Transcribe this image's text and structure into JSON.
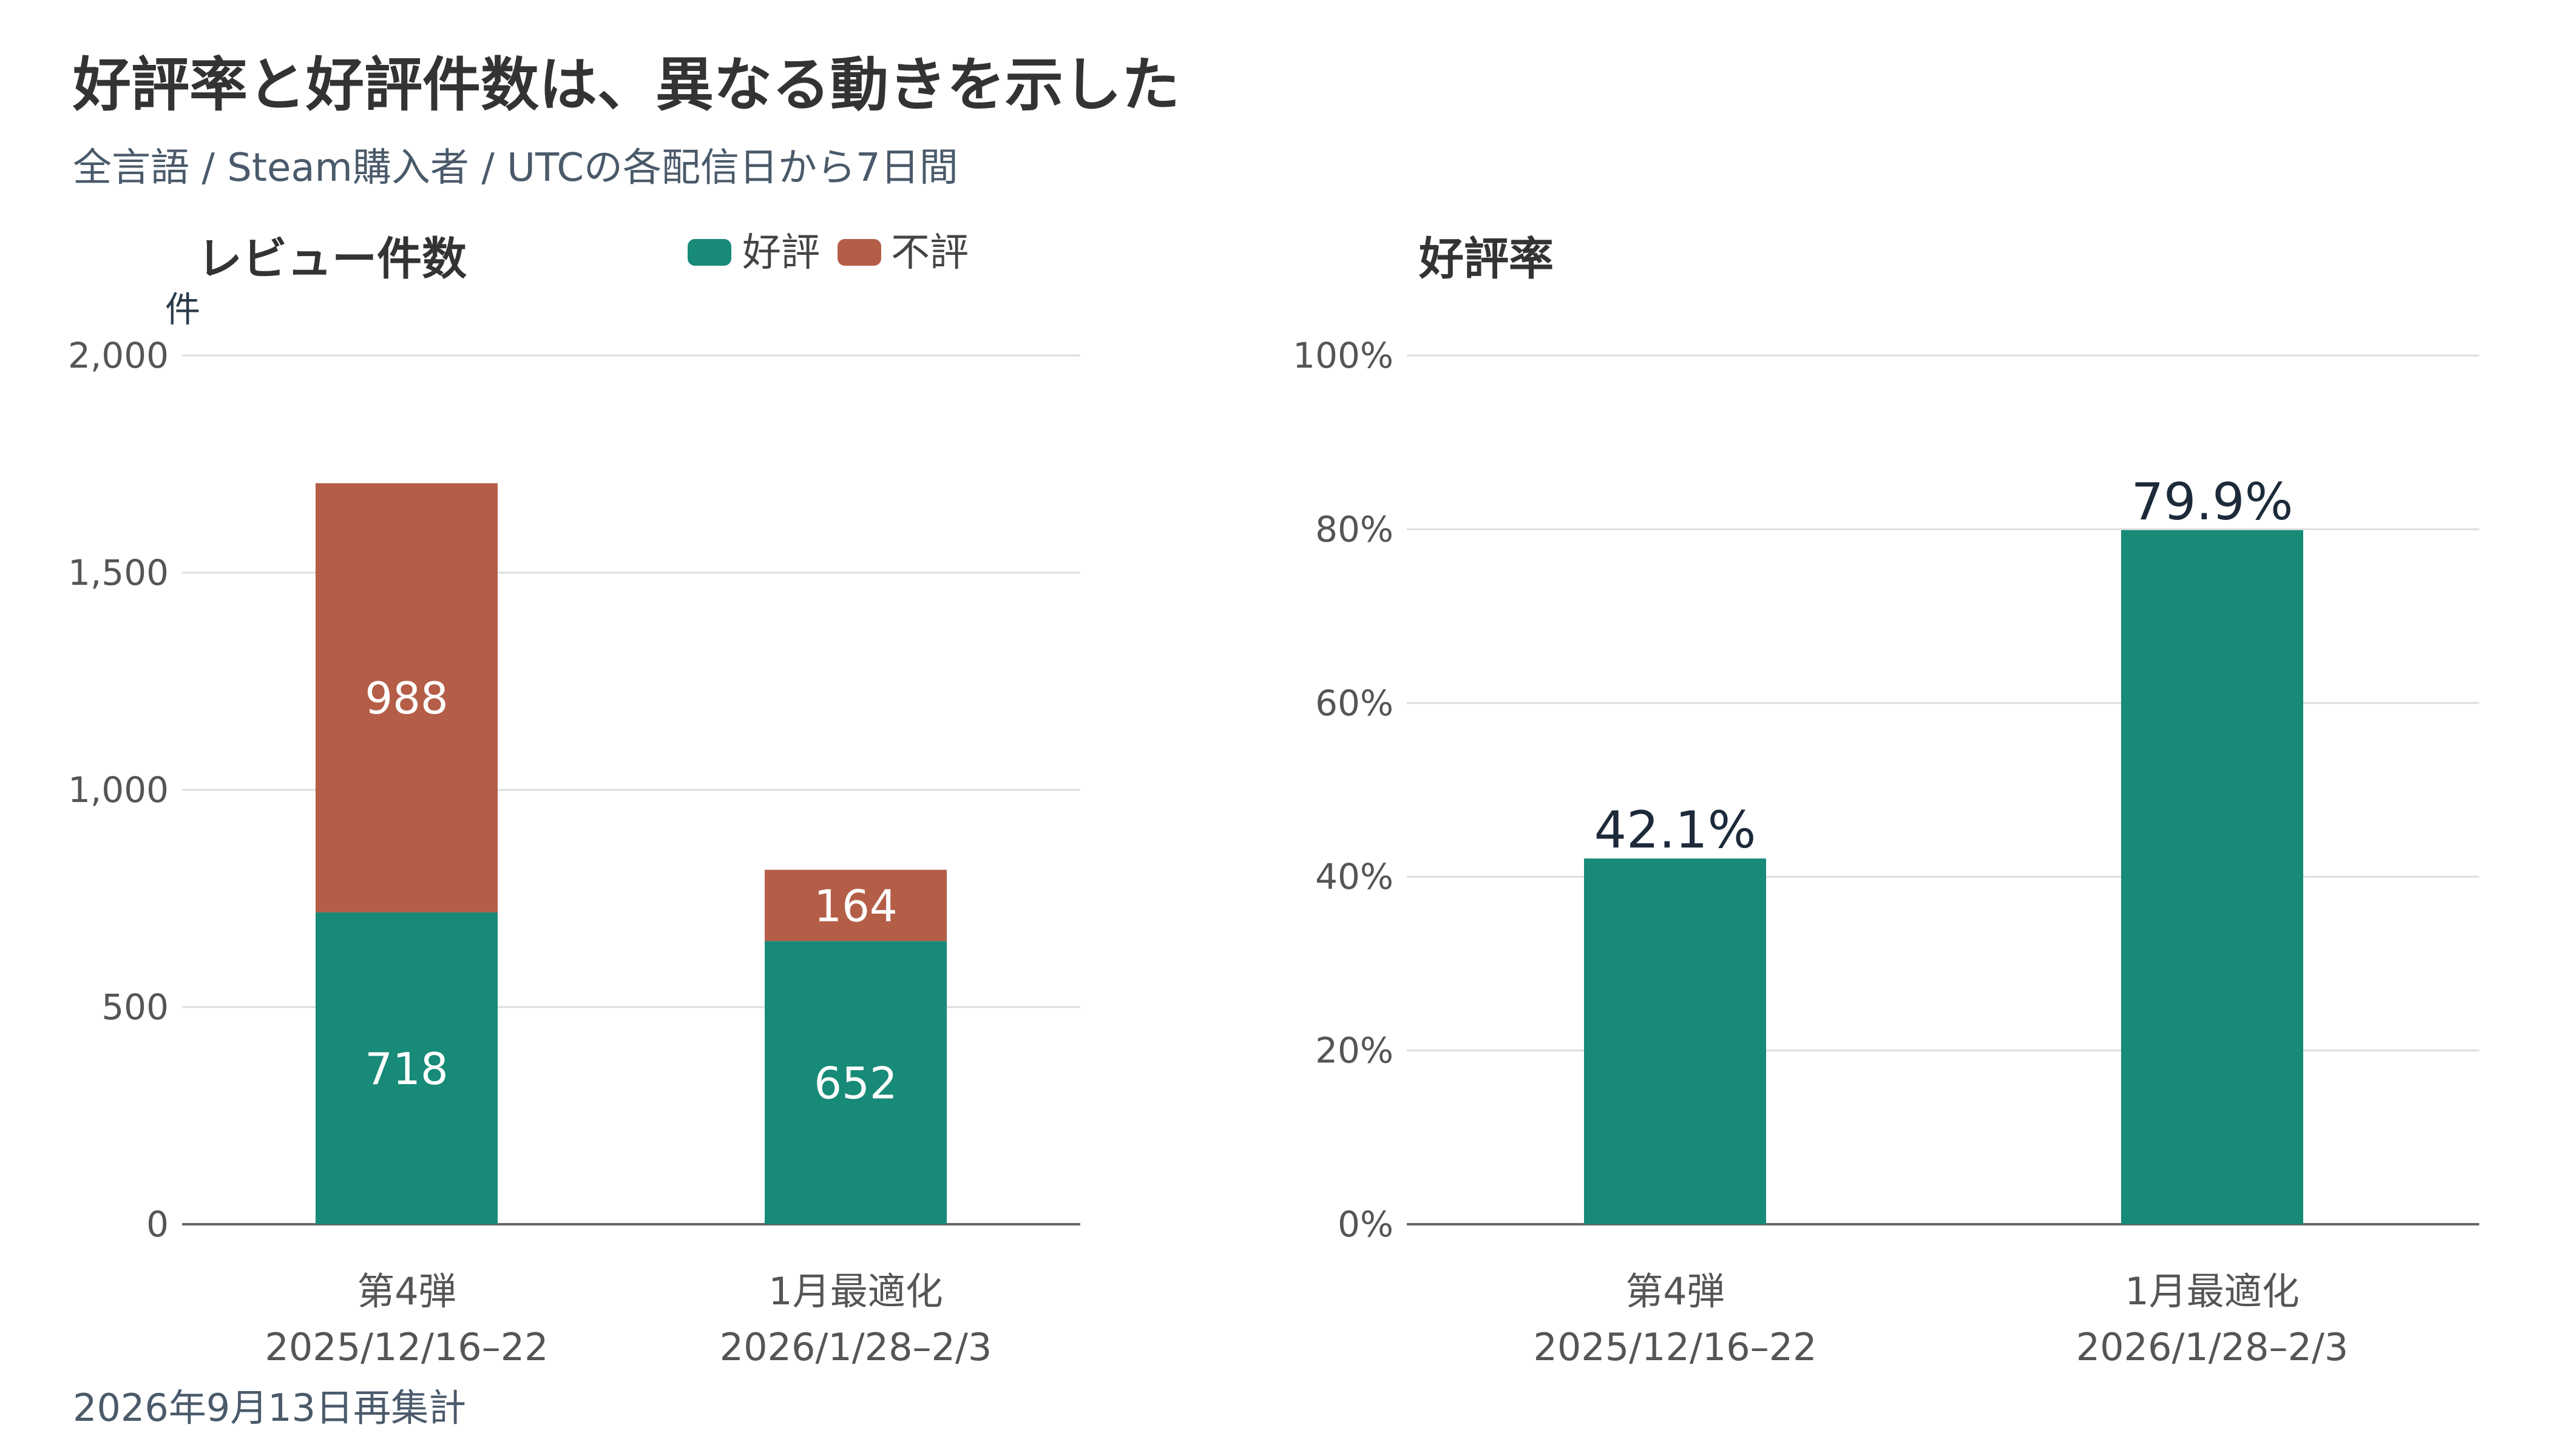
{
  "header": {
    "title": "好評率と好評件数は、異なる動きを示した",
    "subtitle": "全言語 / Steam購入者 / UTCの各配信日から7日間"
  },
  "footnote": "2026年9月13日再集計",
  "colors": {
    "positive": "#178a78",
    "negative": "#b45e48",
    "grid": "#dddddd",
    "axis": "#666666"
  },
  "chart_data": [
    {
      "type": "bar",
      "stacked": true,
      "title": "レビュー件数",
      "ylabel": "件",
      "ylim": [
        0,
        2000
      ],
      "yticks": [
        "0",
        "500",
        "1,000",
        "1,500",
        "2,000"
      ],
      "ytick_values": [
        0,
        500,
        1000,
        1500,
        2000
      ],
      "legend_position": "top-right",
      "categories": [
        {
          "name": "第4弾",
          "period": "2025/12/16–22"
        },
        {
          "name": "1月最適化",
          "period": "2026/1/28–2/3"
        }
      ],
      "series": [
        {
          "name": "好評",
          "values": [
            718,
            652
          ]
        },
        {
          "name": "不評",
          "values": [
            988,
            164
          ]
        }
      ]
    },
    {
      "type": "bar",
      "title": "好評率",
      "ylim": [
        0,
        100
      ],
      "yticks": [
        "0%",
        "20%",
        "40%",
        "60%",
        "80%",
        "100%"
      ],
      "ytick_values": [
        0,
        20,
        40,
        60,
        80,
        100
      ],
      "categories": [
        {
          "name": "第4弾",
          "period": "2025/12/16–22"
        },
        {
          "name": "1月最適化",
          "period": "2026/1/28–2/3"
        }
      ],
      "values": [
        42.1,
        79.9
      ],
      "value_labels": [
        "42.1%",
        "79.9%"
      ]
    }
  ]
}
